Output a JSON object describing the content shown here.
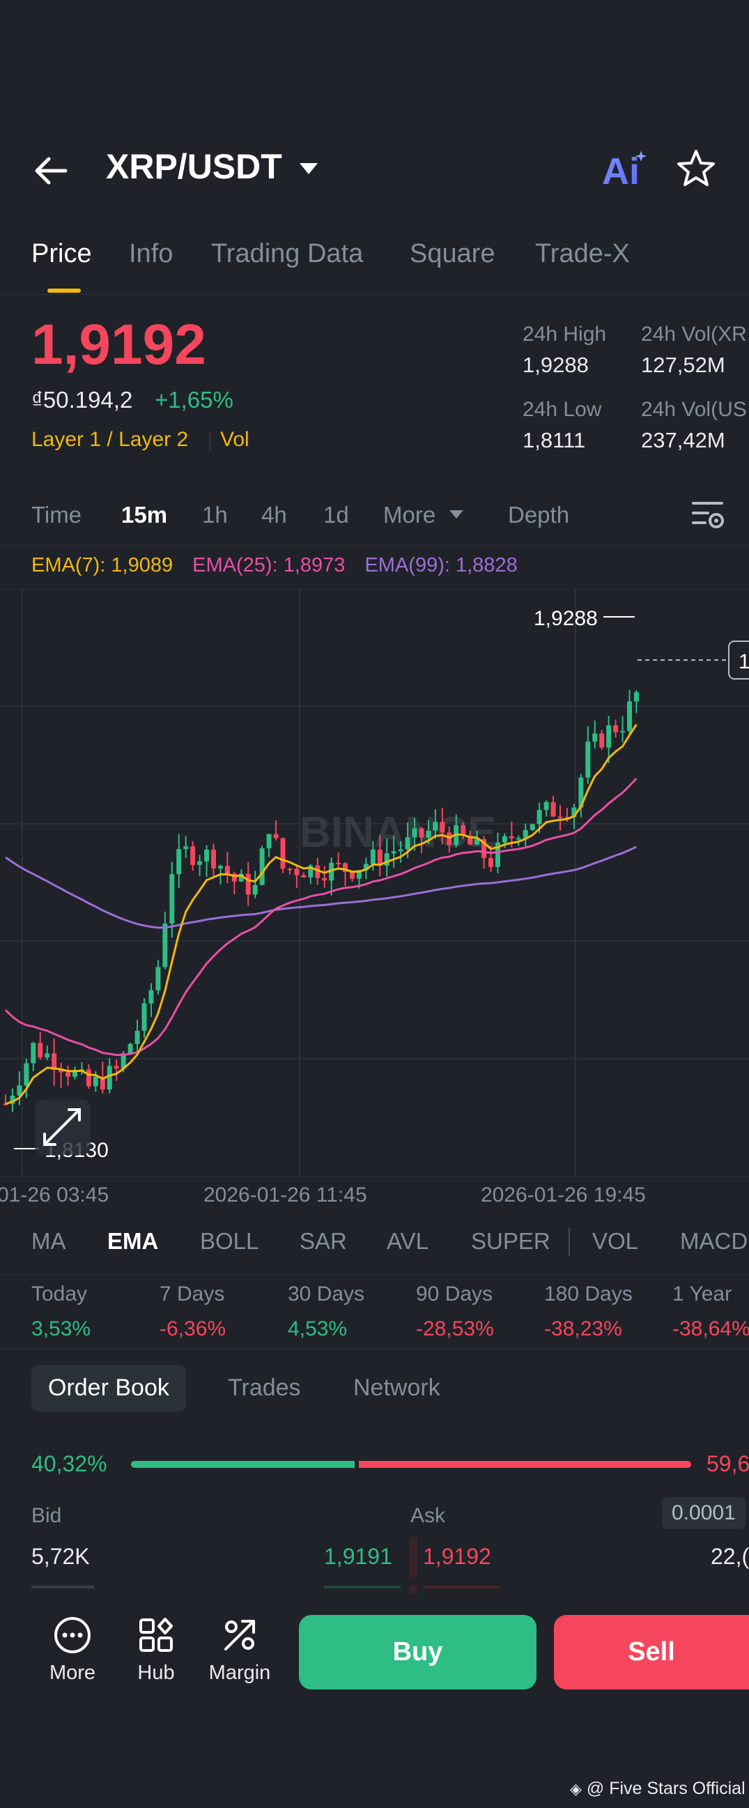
{
  "header": {
    "pair": "XRP/USDT",
    "icons": [
      "back-arrow-icon",
      "caret-down-icon",
      "ai-icon",
      "star-icon"
    ]
  },
  "tabs": [
    {
      "label": "Price",
      "active": true
    },
    {
      "label": "Info"
    },
    {
      "label": "Trading Data"
    },
    {
      "label": "Square"
    },
    {
      "label": "Trade-X"
    }
  ],
  "price": {
    "last": "1,9192",
    "fiat": "₫50.194,2",
    "change": "+1,65%",
    "tag1": "Layer 1 / Layer 2",
    "tag2": "Vol",
    "high_label": "24h High",
    "high": "1,9288",
    "low_label": "24h Low",
    "low": "1,8111",
    "vol_xrp_label": "24h Vol(XR",
    "vol_xrp": "127,52M",
    "vol_usdt_label": "24h Vol(US",
    "vol_usdt": "237,42M"
  },
  "timeframes": {
    "time": "Time",
    "m15": "15m",
    "h1": "1h",
    "h4": "4h",
    "d1": "1d",
    "more": "More",
    "depth": "Depth"
  },
  "ema": {
    "ema7": "EMA(7): 1,9089",
    "ema25": "EMA(25): 1,8973",
    "ema99": "EMA(99): 1,8828",
    "ema7_color": "#f0b90b",
    "ema25_color": "#e84fa7",
    "ema99_color": "#9c6fd8"
  },
  "chart": {
    "high_marker": "1,9288",
    "low_marker": "1,8130",
    "x_labels": [
      "01-26 03:45",
      "2026-01-26 11:45",
      "2026-01-26 19:45"
    ],
    "watermark": "BINANCE",
    "price_tag": "1"
  },
  "indicators": [
    "MA",
    "EMA",
    "BOLL",
    "SAR",
    "AVL",
    "SUPER",
    "VOL",
    "MACD"
  ],
  "performance": [
    {
      "label": "Today",
      "value": "3,53%",
      "dir": "up"
    },
    {
      "label": "7 Days",
      "value": "-6,36%",
      "dir": "down"
    },
    {
      "label": "30 Days",
      "value": "4,53%",
      "dir": "up"
    },
    {
      "label": "90 Days",
      "value": "-28,53%",
      "dir": "down"
    },
    {
      "label": "180 Days",
      "value": "-38,23%",
      "dir": "down"
    },
    {
      "label": "1 Year",
      "value": "-38,64%",
      "dir": "down"
    }
  ],
  "orderbook": {
    "tabs": [
      "Order Book",
      "Trades",
      "Network"
    ],
    "bid_pct": "40,32%",
    "ask_pct": "59,6",
    "bid_ratio": 0.4032,
    "bid_label": "Bid",
    "ask_label": "Ask",
    "precision": "0.0001",
    "rows": [
      {
        "bid_qty": "5,72K",
        "bid_price": "1,9191",
        "ask_price": "1,9192",
        "ask_qty": "22,("
      }
    ]
  },
  "bottom_bar": {
    "more": "More",
    "hub": "Hub",
    "margin": "Margin",
    "buy": "Buy",
    "sell": "Sell",
    "buy_color": "#2ebd85",
    "sell_color": "#f6465d"
  },
  "watermark_footer": "@ Five Stars Official"
}
